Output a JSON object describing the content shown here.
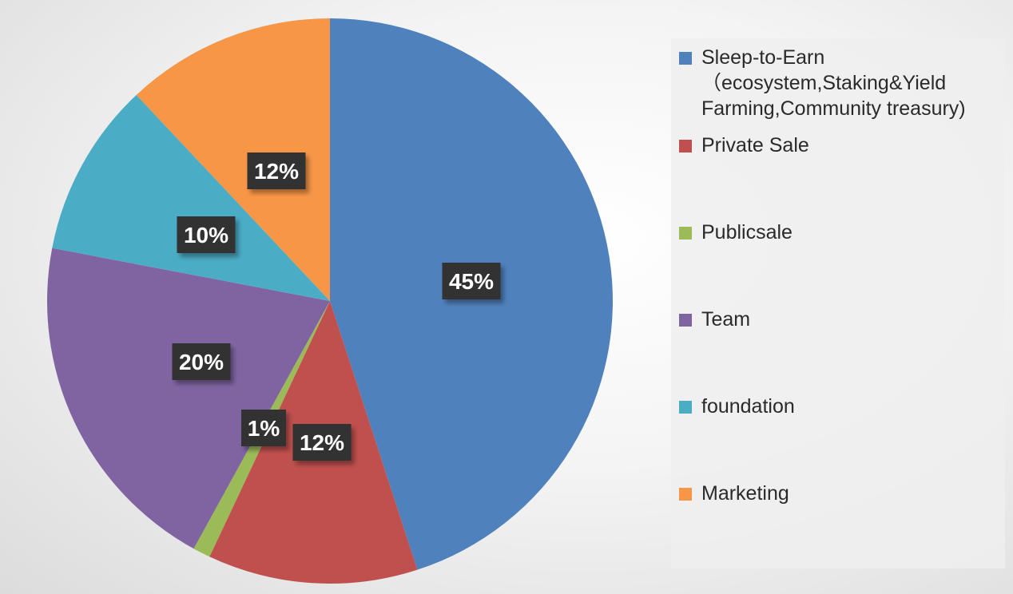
{
  "chart_data": {
    "type": "pie",
    "categories": [
      "Sleep-to-Earn\n（ecosystem,Staking&Yield Farming,Community treasury)",
      "Private Sale",
      "Publicsale",
      "Team",
      "foundation",
      "Marketing"
    ],
    "values": [
      45,
      12,
      1,
      20,
      10,
      12
    ],
    "data_labels": [
      "45%",
      "12%",
      "1%",
      "20%",
      "10%",
      "12%"
    ],
    "colors": [
      "#4f81bd",
      "#c0504d",
      "#9bbb59",
      "#8064a2",
      "#4bacc6",
      "#f79646"
    ],
    "legend_placement": "right"
  }
}
